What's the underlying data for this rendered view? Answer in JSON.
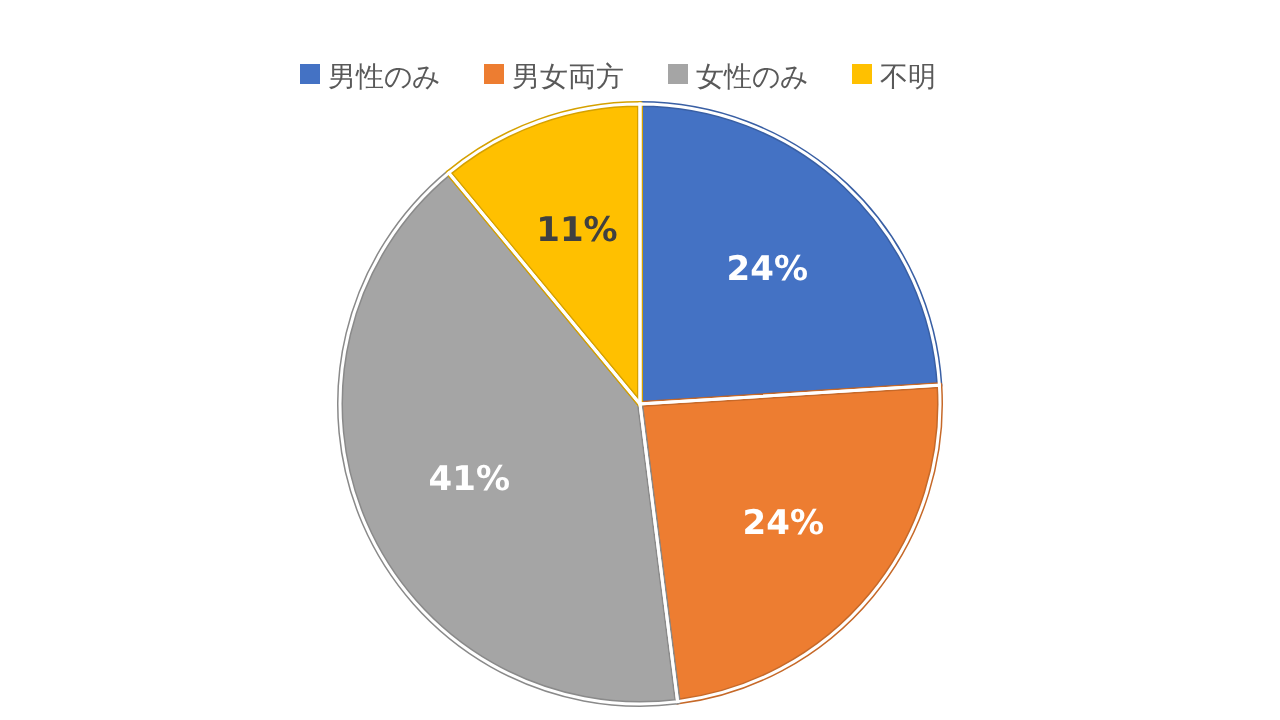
{
  "chart_data": {
    "type": "pie",
    "categories": [
      "男性のみ",
      "男女両方",
      "女性のみ",
      "不明"
    ],
    "values": [
      24,
      24,
      41,
      11
    ],
    "colors": [
      "#4472c4",
      "#ed7d31",
      "#a5a5a5",
      "#ffc000"
    ],
    "value_labels": [
      "24%",
      "24%",
      "41%",
      "11%"
    ],
    "legend": "top"
  }
}
